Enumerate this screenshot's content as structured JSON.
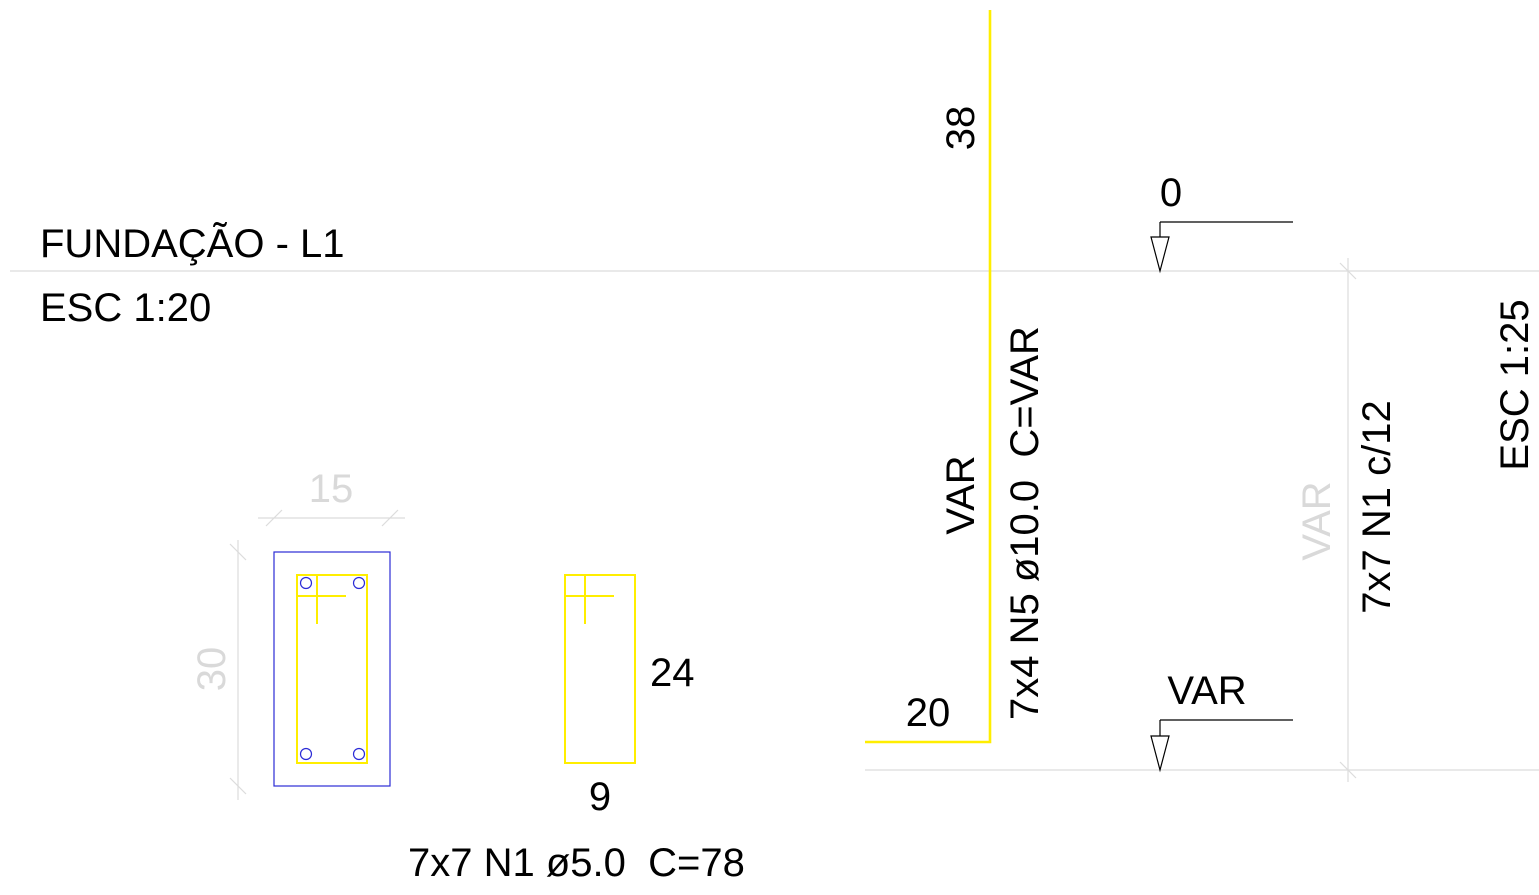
{
  "title": "FUNDAÇÃO - L1",
  "scale_main": "ESC 1:20",
  "section": {
    "width_dim": "15",
    "height_dim": "30"
  },
  "stirrup": {
    "height_dim": "24",
    "width_dim": "9",
    "label": "7x7 N1 ø5.0  C=78"
  },
  "elevation": {
    "bar_top_dim": "38",
    "bar_bottom_dim": "20",
    "bar_var_dim": "VAR",
    "bar_label": "7x4 N5 ø10.0  C=VAR",
    "level_top": "0",
    "level_bottom": "VAR",
    "span_dim": "VAR",
    "stirrup_spacing": "7x7 N1 c/12",
    "scale": "ESC 1:25"
  },
  "colors": {
    "background": "#ffffff",
    "text": "#000000",
    "dimension_text": "#d9d9d9",
    "rebar": "#ffee00",
    "concrete_outline": "#2b2bd6",
    "guide_line": "#dcdcdc"
  }
}
